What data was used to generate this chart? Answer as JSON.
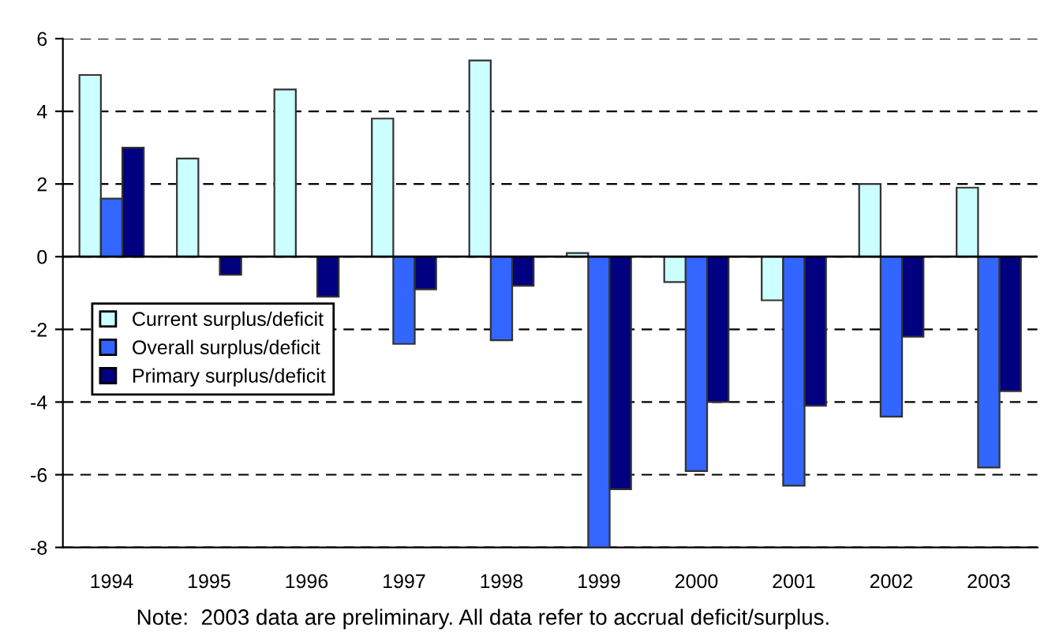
{
  "chart_data": {
    "type": "bar",
    "categories": [
      "1994",
      "1995",
      "1996",
      "1997",
      "1998",
      "1999",
      "2000",
      "2001",
      "2002",
      "2003"
    ],
    "series": [
      {
        "name": "Current surplus/deficit",
        "color": "#ccffff",
        "values": [
          5.0,
          2.7,
          4.6,
          3.8,
          5.4,
          0.1,
          -0.7,
          -1.2,
          2.0,
          1.9
        ]
      },
      {
        "name": "Overall surplus/deficit",
        "color": "#3366ff",
        "values": [
          1.6,
          null,
          null,
          -2.4,
          -2.3,
          -8.0,
          -5.9,
          -6.3,
          -4.4,
          -5.8
        ]
      },
      {
        "name": "Primary surplus/deficit",
        "color": "#000080",
        "values": [
          3.0,
          -0.5,
          -1.1,
          -0.9,
          -0.8,
          -6.4,
          -4.0,
          -4.1,
          -2.2,
          -3.7
        ]
      }
    ],
    "ylim": [
      -8,
      6
    ],
    "yticks": [
      -8,
      -6,
      -4,
      -2,
      0,
      2,
      4,
      6
    ],
    "grid": "y",
    "legend": "center left",
    "annotations": [
      "Note:  2003 data are preliminary. All data refer to accrual deficit/surplus."
    ]
  }
}
